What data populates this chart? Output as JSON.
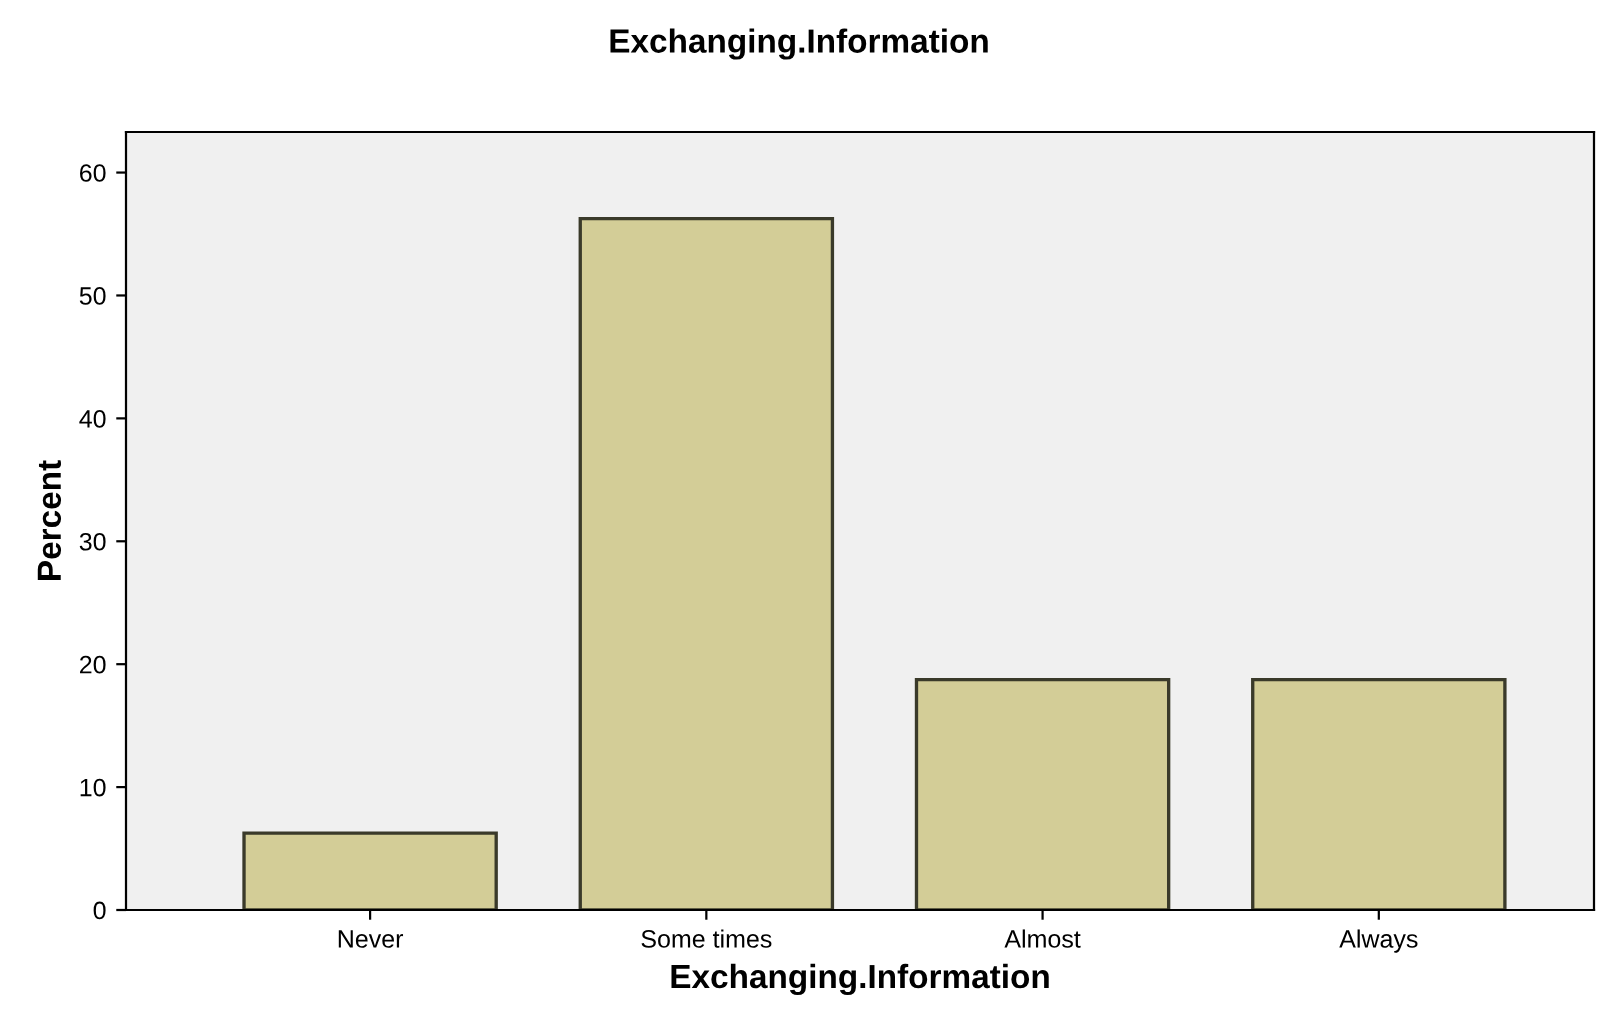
{
  "chart_data": {
    "type": "bar",
    "title": "Exchanging.Information",
    "xlabel": "Exchanging.Information",
    "ylabel": "Percent",
    "categories": [
      "Never",
      "Some times",
      "Almost",
      "Always"
    ],
    "values": [
      6.25,
      56.25,
      18.75,
      18.75
    ],
    "color": "#d3cd97",
    "ylim": [
      0,
      63.3
    ],
    "yticks": [
      0,
      10,
      20,
      30,
      40,
      50,
      60
    ],
    "grid": false,
    "legend": false
  }
}
